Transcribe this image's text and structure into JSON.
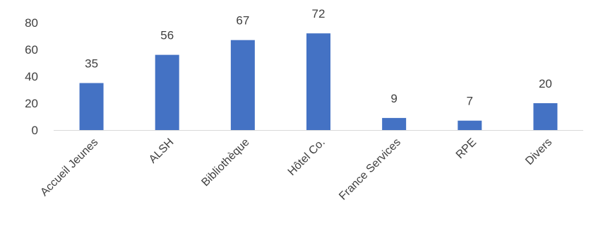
{
  "chart_data": {
    "type": "bar",
    "categories": [
      "Accueil Jeunes",
      "ALSH",
      "Bibliothèque",
      "Hôtel Co.",
      "France Services",
      "RPE",
      "Divers"
    ],
    "values": [
      35,
      56,
      67,
      72,
      9,
      7,
      20
    ],
    "title": "",
    "xlabel": "",
    "ylabel": "",
    "ylim": [
      0,
      80
    ],
    "yticks": [
      0,
      20,
      40,
      60,
      80
    ],
    "grid": false,
    "legend": "none",
    "bar_color": "#4472C4",
    "text_color": "#404040",
    "axis_color": "#D9D9D9",
    "data_labels": true
  }
}
